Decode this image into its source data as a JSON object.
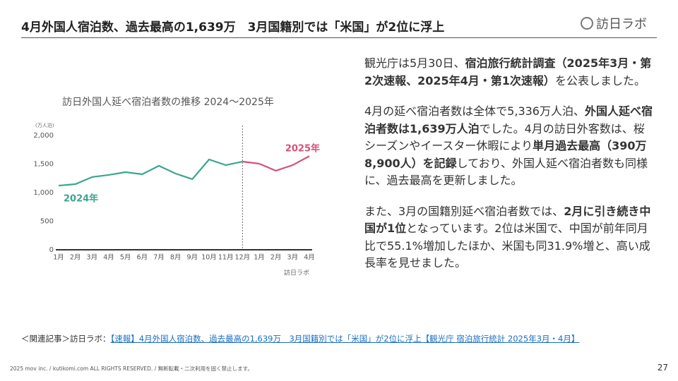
{
  "header": {
    "title": "4月外国人宿泊数、過去最高の1,639万　3月国籍別では「米国」が2位に浮上",
    "logo": "訪日ラボ"
  },
  "chart_data": {
    "type": "line",
    "title": "訪日外国人延べ宿泊者数の推移 2024〜2025年",
    "y_unit": "(万人泊)",
    "categories": [
      "1月",
      "2月",
      "3月",
      "4月",
      "5月",
      "6月",
      "7月",
      "8月",
      "9月",
      "10月",
      "11月",
      "12月",
      "1月",
      "2月",
      "3月",
      "4月"
    ],
    "series": [
      {
        "name": "2024年",
        "color": "#3aa68f",
        "values": [
          1123,
          1148,
          1272,
          1309,
          1358,
          1321,
          1469,
          1333,
          1235,
          1580,
          1481,
          1543,
          null,
          null,
          null,
          null
        ]
      },
      {
        "name": "2025年",
        "color": "#d6507a",
        "values": [
          null,
          null,
          null,
          null,
          null,
          null,
          null,
          null,
          null,
          null,
          null,
          null,
          1506,
          1383,
          1481,
          1639
        ]
      }
    ],
    "ylim": [
      0,
      2000
    ],
    "yticks": [
      0,
      500,
      {
        "value": 1000,
        "label": "1,000"
      },
      {
        "value": 1500,
        "label": "1,500"
      },
      {
        "value": 2000,
        "label": "2,000"
      }
    ],
    "grid": false,
    "source": "訪日ラボ"
  },
  "body": [
    [
      {
        "text": "観光庁は5月30日、",
        "bold": false
      },
      {
        "text": "宿泊旅行統計調査（2025年3月・第2次速報、2025年4月・第1次速報）",
        "bold": true
      },
      {
        "text": "を公表しました。",
        "bold": false
      }
    ],
    [
      {
        "text": "4月の延べ宿泊者数は全体で5,336万人泊、",
        "bold": false
      },
      {
        "text": "外国人延べ宿泊者数は1,639万人泊",
        "bold": true
      },
      {
        "text": "でした。4月の訪日外客数は、桜シーズンやイースター休暇により",
        "bold": false
      },
      {
        "text": "単月過去最高（390万8,900人）を記録",
        "bold": true
      },
      {
        "text": "しており、外国人延べ宿泊者数も同様に、過去最高を更新しました。",
        "bold": false
      }
    ],
    [
      {
        "text": "また、3月の国籍別延べ宿泊者数では、",
        "bold": false
      },
      {
        "text": "2月に引き続き中国が1位",
        "bold": true
      },
      {
        "text": "となっています。2位は米国で、中国が前年同月比で55.1%増加したほか、米国も同31.9%増と、高い成長率を見せました。",
        "bold": false
      }
    ]
  ],
  "related": {
    "prefix": "＜関連記事＞訪日ラボ：",
    "link": "【速報】4月外国人宿泊数、過去最高の1,639万　3月国籍別では「米国」が2位に浮上【観光庁 宿泊旅行統計 2025年3月・4月】"
  },
  "footer": {
    "copyright": "2025 mov inc. / kutikomi.com ALL RIGHTS RESERVED. / 無断転載・二次利用を固く禁止します。",
    "page": "27"
  }
}
